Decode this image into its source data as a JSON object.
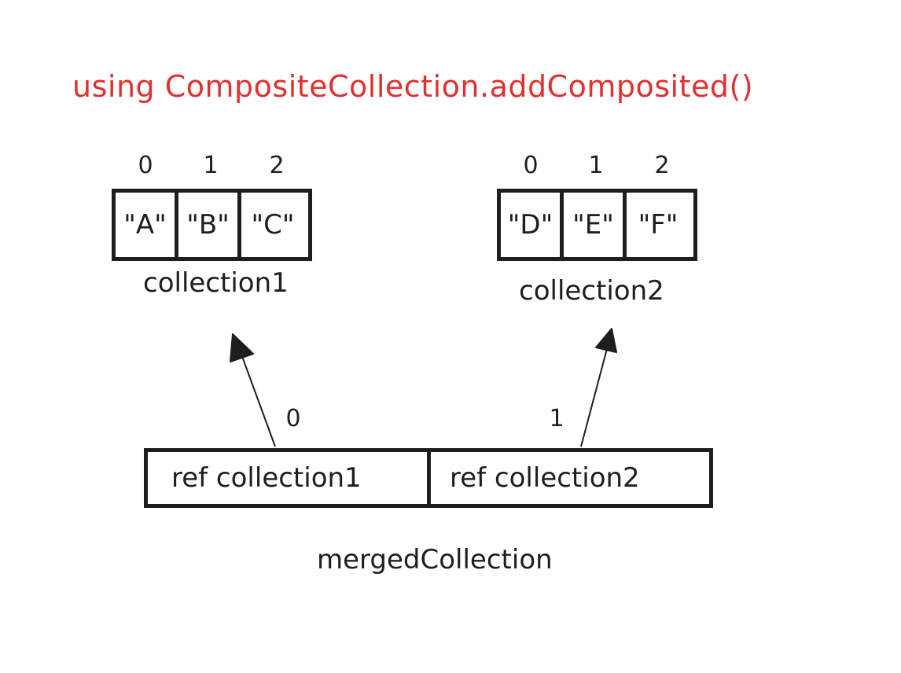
{
  "title": "using CompositeCollection.addComposited()",
  "collection1": {
    "label": "collection1",
    "indices": [
      "0",
      "1",
      "2"
    ],
    "cells": [
      "\"A\"",
      "\"B\"",
      "\"C\""
    ]
  },
  "collection2": {
    "label": "collection2",
    "indices": [
      "0",
      "1",
      "2"
    ],
    "cells": [
      "\"D\"",
      "\"E\"",
      "\"F\""
    ]
  },
  "merged": {
    "label": "mergedCollection",
    "indices": [
      "0",
      "1"
    ],
    "slots": [
      "ref collection1",
      "ref collection2"
    ]
  },
  "colors": {
    "title": "#e03131",
    "stroke": "#1e1e1e"
  }
}
